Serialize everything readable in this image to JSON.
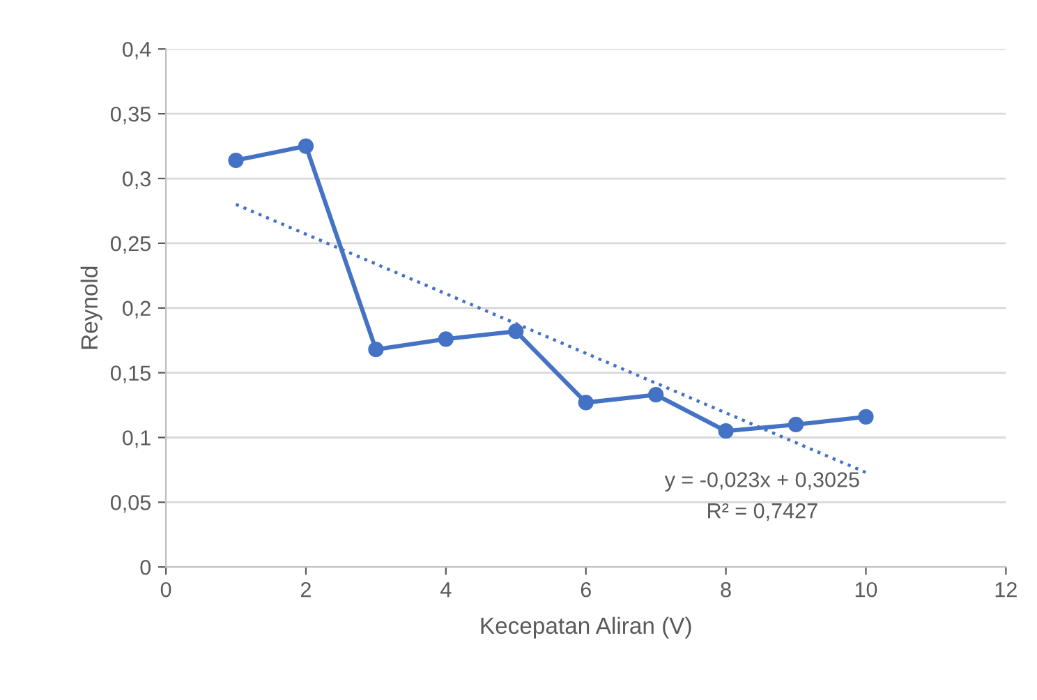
{
  "chart_data": {
    "type": "line",
    "xlabel": "Kecepatan Aliran (V)",
    "ylabel": "Reynold",
    "series": [
      {
        "x": [
          1,
          2,
          3,
          4,
          5,
          6,
          7,
          8,
          9,
          10
        ],
        "values": [
          0.314,
          0.325,
          0.168,
          0.176,
          0.182,
          0.127,
          0.133,
          0.105,
          0.11,
          0.116
        ],
        "color": "#4472c4",
        "marker": "circle",
        "line_style": "solid"
      },
      {
        "x": [
          1,
          10
        ],
        "values": [
          0.28,
          0.073
        ],
        "color": "#4472c4",
        "marker": "none",
        "line_style": "dotted"
      }
    ],
    "xlim": [
      0,
      12
    ],
    "xticks": [
      0,
      2,
      4,
      6,
      8,
      10,
      12
    ],
    "ylim": [
      0,
      0.4
    ],
    "yticks": [
      0,
      {
        "value": 0.05,
        "label": "0,05"
      },
      {
        "value": 0.1,
        "label": "0,1"
      },
      {
        "value": 0.15,
        "label": "0,15"
      },
      {
        "value": 0.2,
        "label": "0,2"
      },
      {
        "value": 0.25,
        "label": "0,25"
      },
      {
        "value": 0.3,
        "label": "0,3"
      },
      {
        "value": 0.35,
        "label": "0,35"
      },
      {
        "value": 0.4,
        "label": "0,4"
      }
    ],
    "grid": "y",
    "annotations": [
      "y = -0,023x + 0,3025",
      "R² = 0,7427"
    ]
  }
}
